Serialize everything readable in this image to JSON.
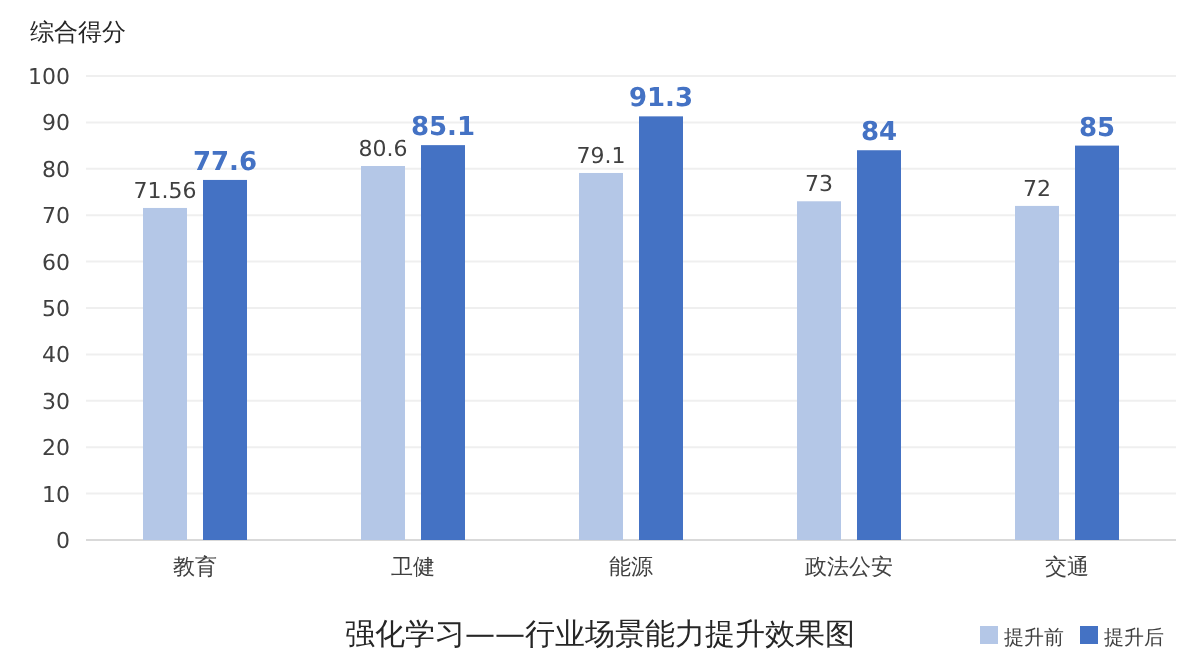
{
  "chart_data": {
    "type": "bar",
    "title": "强化学习——行业场景能力提升效果图",
    "ylabel": "综合得分",
    "categories": [
      "教育",
      "卫健",
      "能源",
      "政法公安",
      "交通"
    ],
    "series": [
      {
        "name": "提升前",
        "color": "#b4c7e7",
        "values": [
          71.56,
          80.6,
          79.1,
          73,
          72
        ]
      },
      {
        "name": "提升后",
        "color": "#4472c4",
        "values": [
          77.6,
          85.1,
          91.3,
          84,
          85
        ]
      }
    ],
    "ylim": [
      0,
      100
    ],
    "yticks": [
      0,
      10,
      20,
      30,
      40,
      50,
      60,
      70,
      80,
      90,
      100
    ],
    "grid": "y",
    "legend": "bottom right",
    "data_labels": true
  }
}
